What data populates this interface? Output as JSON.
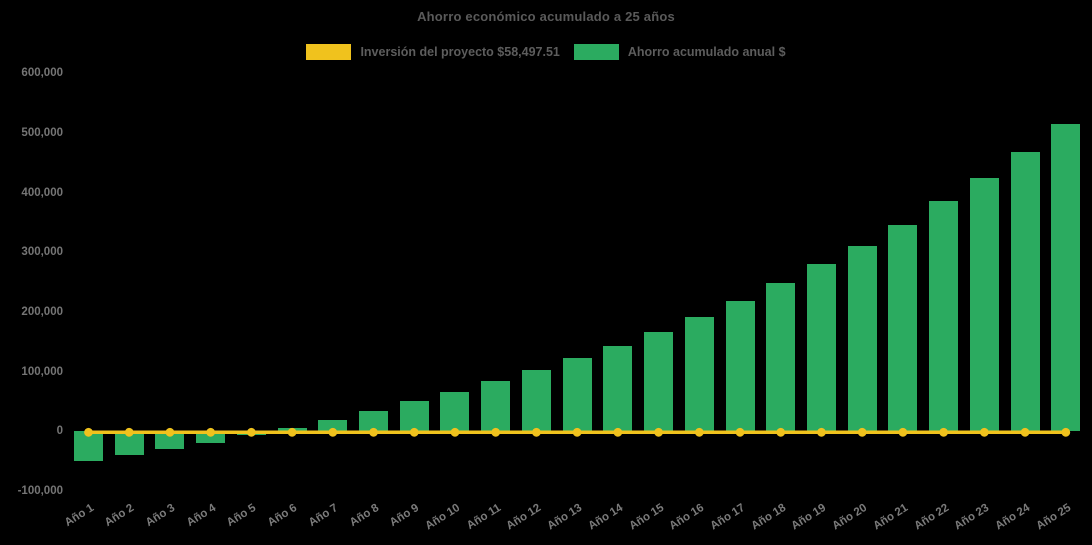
{
  "page": {
    "background": "#000000"
  },
  "chart_data": {
    "type": "bar",
    "title": "Ahorro económico acumulado a 25 años",
    "categories": [
      "Año 1",
      "Año 2",
      "Año 3",
      "Año 4",
      "Año 5",
      "Año 6",
      "Año 7",
      "Año 8",
      "Año 9",
      "Año 10",
      "Año 11",
      "Año 12",
      "Año 13",
      "Año 14",
      "Año 15",
      "Año 16",
      "Año 17",
      "Año 18",
      "Año 19",
      "Año 20",
      "Año 21",
      "Año 22",
      "Año 23",
      "Año 24",
      "Año 25"
    ],
    "series": [
      {
        "name": "Inversión del proyecto $58,497.51",
        "type": "line",
        "color": "#F0C21D",
        "marker": "circle",
        "values": [
          0,
          0,
          0,
          0,
          0,
          0,
          0,
          0,
          0,
          0,
          0,
          0,
          0,
          0,
          0,
          0,
          0,
          0,
          0,
          0,
          0,
          0,
          0,
          0,
          0
        ]
      },
      {
        "name": "Ahorro acumulado anual $",
        "type": "bar",
        "color": "#2BAB60",
        "values": [
          -50000,
          -39000,
          -30000,
          -20000,
          -7000,
          6000,
          19000,
          34000,
          50000,
          66000,
          84000,
          103000,
          123000,
          143000,
          167000,
          192000,
          219000,
          249000,
          280000,
          311000,
          346000,
          385000,
          425000,
          468000,
          515000
        ]
      }
    ],
    "xlabel": "",
    "ylabel": "",
    "ylim": [
      -100000,
      600000
    ],
    "ytick_step": 100000,
    "ytick_labels": [
      "600,000",
      "500,000",
      "400,000",
      "300,000",
      "200,000",
      "100,000",
      "0",
      "-100,000"
    ],
    "ytick_values": [
      600000,
      500000,
      400000,
      300000,
      200000,
      100000,
      0,
      -100000
    ],
    "grid": false,
    "legend_position": "top-center",
    "colors": {
      "background": "#000000",
      "title_text": "#5a5a5a",
      "legend_text": "#5d5d5d",
      "tick_text": "#767676",
      "bar_green": "#2BAB60",
      "line_yellow": "#F0C21D"
    }
  }
}
